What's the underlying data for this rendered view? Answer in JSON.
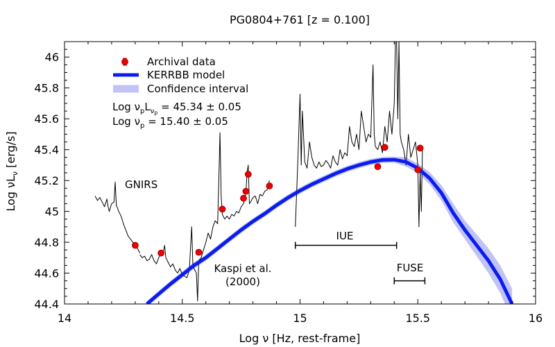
{
  "chart_data": {
    "type": "line",
    "title": "PG0804+761  [z = 0.100]",
    "xlabel_parts": [
      "Log ",
      "ν",
      "  [Hz, rest-frame]"
    ],
    "ylabel_parts": [
      "Log ",
      "ν",
      "L",
      "ν",
      "  [erg/s]"
    ],
    "xlim": [
      14,
      16
    ],
    "ylim": [
      44.4,
      46.1
    ],
    "xticks": [
      14,
      14.5,
      15,
      15.5,
      16
    ],
    "xtick_labels": [
      "14",
      "14.5",
      "15",
      "15.5",
      "16"
    ],
    "yticks": [
      44.4,
      44.6,
      44.8,
      45.0,
      45.2,
      45.4,
      45.6,
      45.8,
      46.0
    ],
    "ytick_labels": [
      "44.4",
      "44.6",
      "44.8",
      "45",
      "45.2",
      "45.4",
      "45.6",
      "45.8",
      "46"
    ],
    "legend": {
      "position": "top-left",
      "entries": [
        {
          "name": "Archival data",
          "style": "marker"
        },
        {
          "name": "KERRBB model",
          "style": "line"
        },
        {
          "name": "Confidence interval",
          "style": "band"
        }
      ]
    },
    "fit_text": {
      "line1": {
        "prefix": "Log ",
        "nu": "ν",
        "sub1": "p",
        "L": "L",
        "sub2": "ν",
        "sub3": "p",
        "value": " = 45.34 ± 0.05"
      },
      "line2": {
        "prefix": "Log ",
        "nu": "ν",
        "sub": "p",
        "value": " = 15.40 ± 0.05"
      }
    },
    "annotations": {
      "gnirs": "GNIRS",
      "kaspi_line1": "Kaspi et al.",
      "kaspi_line2": "(2000)",
      "iue": "IUE",
      "fuse": "FUSE"
    },
    "coverage_ranges": [
      {
        "name": "IUE",
        "x": [
          14.98,
          15.41
        ],
        "y": 44.78
      },
      {
        "name": "FUSE",
        "x": [
          15.4,
          15.53
        ],
        "y": 44.55
      }
    ],
    "archival_data": {
      "x": [
        14.3,
        14.41,
        14.57,
        14.67,
        14.76,
        14.77,
        14.78,
        14.87,
        15.33,
        15.36,
        15.5,
        15.51
      ],
      "y": [
        44.78,
        44.73,
        44.735,
        45.015,
        45.085,
        45.13,
        45.24,
        45.165,
        45.29,
        45.415,
        45.27,
        45.41
      ]
    },
    "kerrbb_model": {
      "x": [
        14.35,
        14.4,
        14.45,
        14.5,
        14.55,
        14.6,
        14.65,
        14.7,
        14.75,
        14.8,
        14.85,
        14.9,
        14.95,
        15.0,
        15.05,
        15.1,
        15.15,
        15.2,
        15.25,
        15.3,
        15.35,
        15.4,
        15.45,
        15.5,
        15.55,
        15.6,
        15.65,
        15.7,
        15.75,
        15.8,
        15.85,
        15.9
      ],
      "y": [
        44.4,
        44.465,
        44.53,
        44.59,
        44.65,
        44.7,
        44.76,
        44.82,
        44.88,
        44.935,
        44.985,
        45.04,
        45.09,
        45.135,
        45.175,
        45.21,
        45.245,
        45.275,
        45.3,
        45.32,
        45.333,
        45.335,
        45.32,
        45.28,
        45.215,
        45.12,
        44.99,
        44.88,
        44.78,
        44.68,
        44.56,
        44.4
      ],
      "band_halfwidth": [
        0.02,
        0.02,
        0.02,
        0.02,
        0.02,
        0.02,
        0.02,
        0.02,
        0.02,
        0.02,
        0.02,
        0.02,
        0.02,
        0.02,
        0.02,
        0.02,
        0.02,
        0.02,
        0.02,
        0.02,
        0.02,
        0.02,
        0.03,
        0.03,
        0.04,
        0.05,
        0.06,
        0.06,
        0.07,
        0.08,
        0.09,
        0.1
      ]
    },
    "spectrum_gnirs": {
      "x": [
        14.13,
        14.14,
        14.15,
        14.16,
        14.17,
        14.18,
        14.185,
        14.19,
        14.2,
        14.21,
        14.215,
        14.22,
        14.23,
        14.24,
        14.25,
        14.26,
        14.27,
        14.28,
        14.29,
        14.3,
        14.31,
        14.32
      ],
      "y": [
        45.1,
        45.07,
        45.09,
        45.06,
        45.03,
        45.08,
        45.03,
        45.0,
        45.05,
        45.06,
        45.19,
        45.04,
        45.0,
        44.97,
        44.92,
        44.88,
        44.84,
        44.82,
        44.8,
        44.79,
        44.76,
        44.73
      ]
    },
    "spectrum_optical": {
      "x": [
        14.32,
        14.33,
        14.34,
        14.35,
        14.36,
        14.37,
        14.38,
        14.39,
        14.4,
        14.41,
        14.42,
        14.425,
        14.43,
        14.44,
        14.45,
        14.46,
        14.47,
        14.48,
        14.49,
        14.5,
        14.51,
        14.52,
        14.53,
        14.54,
        14.545,
        14.55,
        14.56,
        14.565,
        14.57,
        14.58,
        14.59,
        14.6,
        14.61,
        14.62,
        14.63,
        14.64,
        14.65,
        14.655,
        14.66,
        14.665,
        14.67,
        14.68,
        14.69,
        14.7,
        14.71,
        14.72,
        14.73,
        14.74,
        14.75,
        14.76,
        14.765,
        14.77,
        14.775,
        14.78,
        14.785,
        14.79,
        14.8,
        14.81,
        14.82,
        14.83,
        14.84,
        14.85,
        14.86,
        14.87
      ],
      "y": [
        44.72,
        44.7,
        44.71,
        44.68,
        44.69,
        44.72,
        44.68,
        44.66,
        44.7,
        44.73,
        44.74,
        44.78,
        44.7,
        44.67,
        44.64,
        44.66,
        44.62,
        44.6,
        44.63,
        44.59,
        44.58,
        44.57,
        44.62,
        44.9,
        44.65,
        44.63,
        44.6,
        44.42,
        44.68,
        44.7,
        44.75,
        44.8,
        44.86,
        44.82,
        44.9,
        44.94,
        44.92,
        45.2,
        45.51,
        45.1,
        44.98,
        44.95,
        44.97,
        44.95,
        44.98,
        44.97,
        45.0,
        44.99,
        45.03,
        45.05,
        45.08,
        45.12,
        45.25,
        45.3,
        45.05,
        45.06,
        45.09,
        45.1,
        45.05,
        45.11,
        45.1,
        45.13,
        45.14,
        45.2
      ]
    },
    "spectrum_uv": {
      "x": [
        14.98,
        14.99,
        15.0,
        15.005,
        15.01,
        15.02,
        15.03,
        15.04,
        15.05,
        15.06,
        15.07,
        15.08,
        15.09,
        15.1,
        15.11,
        15.12,
        15.13,
        15.14,
        15.15,
        15.16,
        15.17,
        15.18,
        15.19,
        15.2,
        15.21,
        15.22,
        15.23,
        15.24,
        15.25,
        15.26,
        15.27,
        15.28,
        15.29,
        15.3,
        15.31,
        15.315,
        15.32,
        15.33,
        15.34,
        15.35,
        15.36,
        15.37,
        15.38,
        15.39,
        15.4,
        15.405,
        15.41,
        15.415,
        15.42,
        15.425,
        15.43,
        15.44,
        15.45,
        15.46,
        15.47,
        15.48,
        15.49,
        15.5,
        15.505,
        15.51,
        15.515,
        15.52
      ],
      "y": [
        44.9,
        45.3,
        45.76,
        45.3,
        45.65,
        45.32,
        45.28,
        45.45,
        45.35,
        45.3,
        45.28,
        45.32,
        45.29,
        45.3,
        45.33,
        45.31,
        45.28,
        45.36,
        45.32,
        45.3,
        45.4,
        45.34,
        45.38,
        45.36,
        45.55,
        45.45,
        45.42,
        45.5,
        45.4,
        45.65,
        45.55,
        45.45,
        45.5,
        45.48,
        45.95,
        45.5,
        45.42,
        45.4,
        45.45,
        45.38,
        45.55,
        45.45,
        45.65,
        45.5,
        45.7,
        46.1,
        46.1,
        45.6,
        46.1,
        45.5,
        45.45,
        45.4,
        45.3,
        45.5,
        45.35,
        45.4,
        45.45,
        45.3,
        44.9,
        45.25,
        45.0,
        45.42
      ]
    }
  }
}
